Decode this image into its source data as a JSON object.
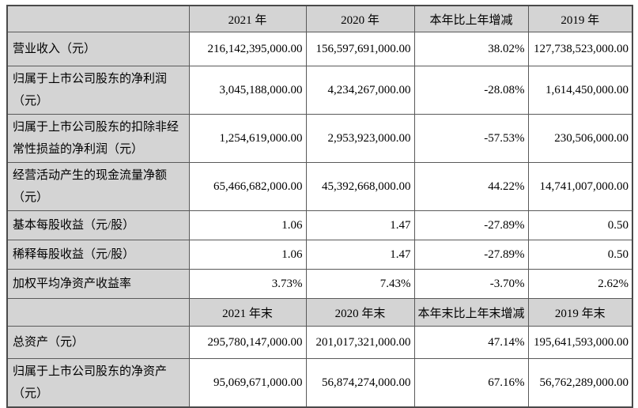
{
  "table": {
    "section_year": {
      "header": {
        "c0": "",
        "c1": "2021 年",
        "c2": "2020 年",
        "c3": "本年比上年增减",
        "c4": "2019 年"
      },
      "rows": [
        {
          "label": "营业收入（元）",
          "c1": "216,142,395,000.00",
          "c2": "156,597,691,000.00",
          "c3": "38.02%",
          "c4": "127,738,523,000.00"
        },
        {
          "label": "归属于上市公司股东的净利润（元）",
          "c1": "3,045,188,000.00",
          "c2": "4,234,267,000.00",
          "c3": "-28.08%",
          "c4": "1,614,450,000.00"
        },
        {
          "label": "归属于上市公司股东的扣除非经常性损益的净利润（元）",
          "c1": "1,254,619,000.00",
          "c2": "2,953,923,000.00",
          "c3": "-57.53%",
          "c4": "230,506,000.00"
        },
        {
          "label": "经营活动产生的现金流量净额（元）",
          "c1": "65,466,682,000.00",
          "c2": "45,392,668,000.00",
          "c3": "44.22%",
          "c4": "14,741,007,000.00"
        },
        {
          "label": "基本每股收益（元/股）",
          "c1": "1.06",
          "c2": "1.47",
          "c3": "-27.89%",
          "c4": "0.50"
        },
        {
          "label": "稀释每股收益（元/股）",
          "c1": "1.06",
          "c2": "1.47",
          "c3": "-27.89%",
          "c4": "0.50"
        },
        {
          "label": "加权平均净资产收益率",
          "c1": "3.73%",
          "c2": "7.43%",
          "c3": "-3.70%",
          "c4": "2.62%"
        }
      ]
    },
    "section_yearend": {
      "header": {
        "c0": "",
        "c1": "2021 年末",
        "c2": "2020 年末",
        "c3": "本年末比上年末增减",
        "c4": "2019 年末"
      },
      "rows": [
        {
          "label": "总资产（元）",
          "c1": "295,780,147,000.00",
          "c2": "201,017,321,000.00",
          "c3": "47.14%",
          "c4": "195,641,593,000.00"
        },
        {
          "label": "归属于上市公司股东的净资产（元）",
          "c1": "95,069,671,000.00",
          "c2": "56,874,274,000.00",
          "c3": "67.16%",
          "c4": "56,762,289,000.00"
        }
      ]
    },
    "colors": {
      "header_bg": "#d4d4d4",
      "cell_bg": "#ffffff",
      "border": "#595959",
      "text": "#000000"
    }
  }
}
